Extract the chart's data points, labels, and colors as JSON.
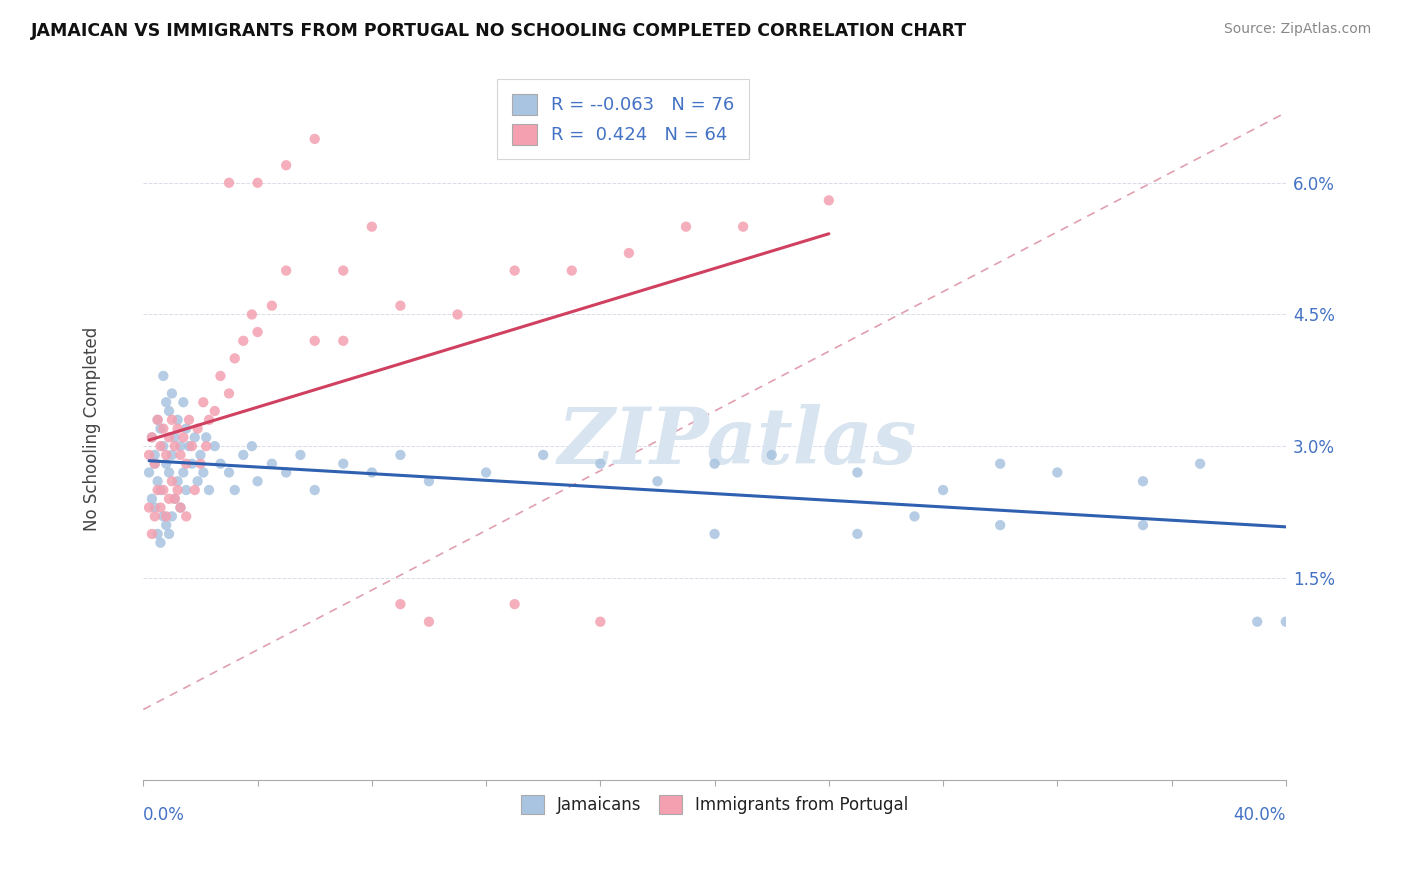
{
  "title": "JAMAICAN VS IMMIGRANTS FROM PORTUGAL NO SCHOOLING COMPLETED CORRELATION CHART",
  "source": "Source: ZipAtlas.com",
  "ylabel": "No Schooling Completed",
  "y_ticks": [
    0.015,
    0.03,
    0.045,
    0.06
  ],
  "y_tick_labels": [
    "1.5%",
    "3.0%",
    "4.5%",
    "6.0%"
  ],
  "xlim": [
    0.0,
    0.4
  ],
  "ylim": [
    -0.008,
    0.072
  ],
  "blue_color": "#a8c4e0",
  "pink_color": "#f4a0b0",
  "blue_line_color": "#3060b0",
  "pink_line_color": "#d04060",
  "ref_line_color": "#e0a0b0",
  "watermark_color": "#d8e4f0",
  "legend_r1": "-0.063",
  "legend_n1": "76",
  "legend_r2": "0.424",
  "legend_n2": "64",
  "blue_scatter_x": [
    0.002,
    0.003,
    0.003,
    0.004,
    0.004,
    0.004,
    0.005,
    0.005,
    0.005,
    0.006,
    0.006,
    0.006,
    0.007,
    0.007,
    0.007,
    0.008,
    0.008,
    0.008,
    0.009,
    0.009,
    0.009,
    0.01,
    0.01,
    0.01,
    0.011,
    0.011,
    0.012,
    0.012,
    0.013,
    0.013,
    0.014,
    0.014,
    0.015,
    0.015,
    0.016,
    0.017,
    0.018,
    0.019,
    0.02,
    0.021,
    0.022,
    0.023,
    0.025,
    0.027,
    0.03,
    0.032,
    0.035,
    0.038,
    0.04,
    0.045,
    0.05,
    0.055,
    0.06,
    0.07,
    0.08,
    0.09,
    0.1,
    0.12,
    0.14,
    0.16,
    0.18,
    0.2,
    0.22,
    0.25,
    0.28,
    0.3,
    0.32,
    0.35,
    0.37,
    0.39,
    0.4,
    0.25,
    0.3,
    0.35,
    0.27,
    0.2
  ],
  "blue_scatter_y": [
    0.027,
    0.031,
    0.024,
    0.029,
    0.023,
    0.028,
    0.033,
    0.026,
    0.02,
    0.032,
    0.025,
    0.019,
    0.038,
    0.03,
    0.022,
    0.035,
    0.028,
    0.021,
    0.034,
    0.027,
    0.02,
    0.036,
    0.029,
    0.022,
    0.031,
    0.024,
    0.033,
    0.026,
    0.03,
    0.023,
    0.035,
    0.027,
    0.032,
    0.025,
    0.03,
    0.028,
    0.031,
    0.026,
    0.029,
    0.027,
    0.031,
    0.025,
    0.03,
    0.028,
    0.027,
    0.025,
    0.029,
    0.03,
    0.026,
    0.028,
    0.027,
    0.029,
    0.025,
    0.028,
    0.027,
    0.029,
    0.026,
    0.027,
    0.029,
    0.028,
    0.026,
    0.028,
    0.029,
    0.027,
    0.025,
    0.028,
    0.027,
    0.026,
    0.028,
    0.01,
    0.01,
    0.02,
    0.021,
    0.021,
    0.022,
    0.02
  ],
  "pink_scatter_x": [
    0.002,
    0.002,
    0.003,
    0.003,
    0.004,
    0.004,
    0.005,
    0.005,
    0.006,
    0.006,
    0.007,
    0.007,
    0.008,
    0.008,
    0.009,
    0.009,
    0.01,
    0.01,
    0.011,
    0.011,
    0.012,
    0.012,
    0.013,
    0.013,
    0.014,
    0.015,
    0.015,
    0.016,
    0.017,
    0.018,
    0.019,
    0.02,
    0.021,
    0.022,
    0.023,
    0.025,
    0.027,
    0.03,
    0.032,
    0.035,
    0.038,
    0.04,
    0.045,
    0.05,
    0.06,
    0.07,
    0.09,
    0.11,
    0.13,
    0.15,
    0.17,
    0.19,
    0.21,
    0.24,
    0.03,
    0.04,
    0.05,
    0.06,
    0.07,
    0.08,
    0.09,
    0.1,
    0.13,
    0.16
  ],
  "pink_scatter_y": [
    0.029,
    0.023,
    0.031,
    0.02,
    0.028,
    0.022,
    0.033,
    0.025,
    0.03,
    0.023,
    0.032,
    0.025,
    0.029,
    0.022,
    0.031,
    0.024,
    0.033,
    0.026,
    0.03,
    0.024,
    0.032,
    0.025,
    0.029,
    0.023,
    0.031,
    0.028,
    0.022,
    0.033,
    0.03,
    0.025,
    0.032,
    0.028,
    0.035,
    0.03,
    0.033,
    0.034,
    0.038,
    0.036,
    0.04,
    0.042,
    0.045,
    0.043,
    0.046,
    0.05,
    0.042,
    0.042,
    0.046,
    0.045,
    0.05,
    0.05,
    0.052,
    0.055,
    0.055,
    0.058,
    0.06,
    0.06,
    0.062,
    0.065,
    0.05,
    0.055,
    0.012,
    0.01,
    0.012,
    0.01
  ]
}
